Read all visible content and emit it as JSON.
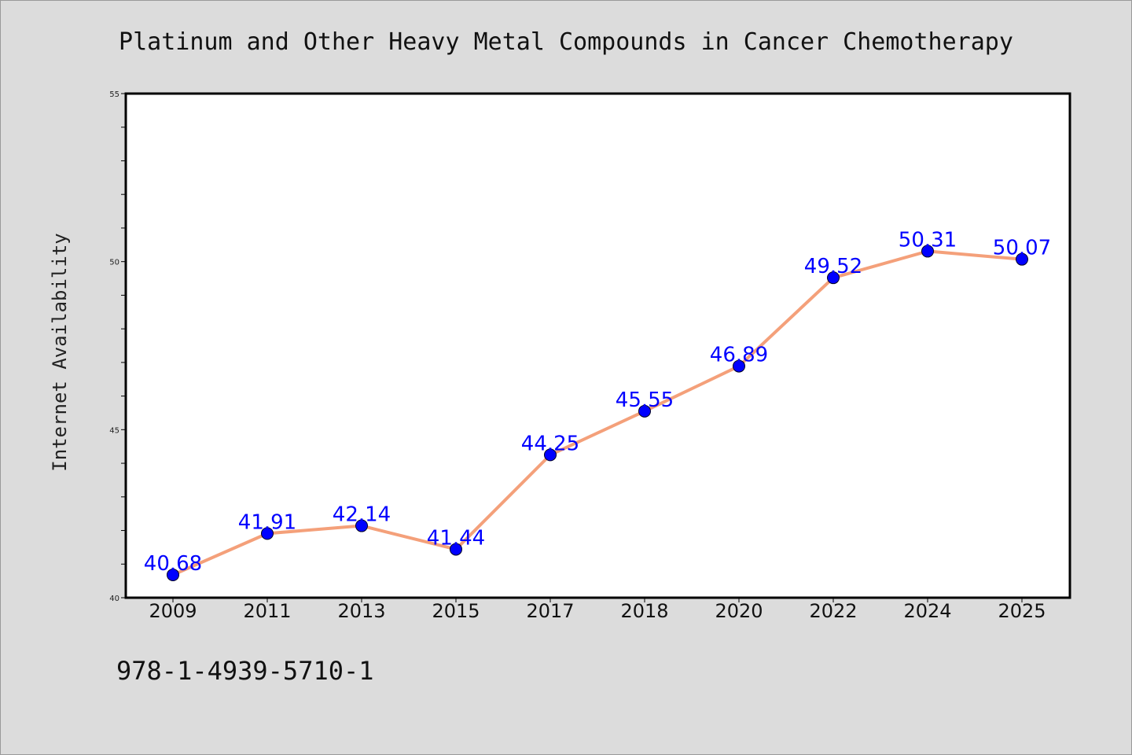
{
  "chart_data": {
    "type": "line",
    "title": "Platinum and Other Heavy Metal Compounds in Cancer Chemotherapy",
    "xlabel": "",
    "ylabel": "Internet Availability",
    "categories": [
      "2009",
      "2011",
      "2013",
      "2015",
      "2017",
      "2018",
      "2020",
      "2022",
      "2024",
      "2025"
    ],
    "series": [
      {
        "values": [
          40.68,
          41.91,
          42.14,
          41.44,
          44.25,
          45.55,
          46.89,
          49.52,
          50.31,
          50.07
        ],
        "labels": [
          "40.68",
          "41.91",
          "42.14",
          "41.44",
          "44.25",
          "45.55",
          "46.89",
          "49.52",
          "50.31",
          "50.07"
        ]
      }
    ],
    "ylim": [
      40,
      55
    ],
    "yticks": [
      "40",
      "45",
      "50",
      "55"
    ],
    "grid": false,
    "legend": "none",
    "colors": {
      "line": "#f4a07a",
      "marker": "#0000ff",
      "data_label": "#0000ff",
      "plot_background": "#ffffff",
      "figure_background": "#dcdcdc"
    }
  },
  "footer": {
    "isbn": "978-1-4939-5710-1"
  }
}
